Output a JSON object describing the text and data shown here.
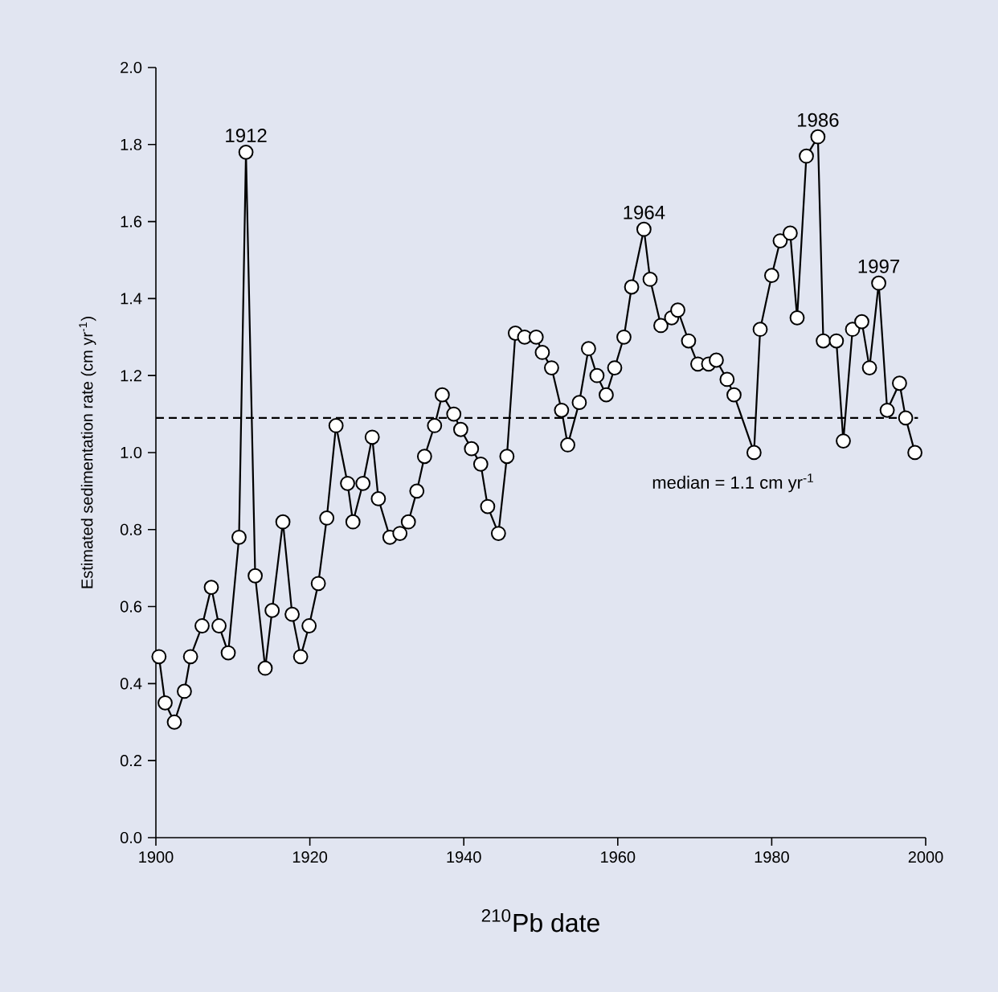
{
  "chart_data": {
    "type": "line",
    "xlabel": "$^{210}$Pb date",
    "ylabel": "Estimated sedimentation rate (cm yr$^{-1}$)",
    "xlim": [
      1900,
      2000
    ],
    "ylim": [
      0,
      2.0
    ],
    "xticks": [
      1900,
      1920,
      1940,
      1960,
      1980,
      2000
    ],
    "yticks": [
      {
        "value": 0,
        "label": "0.0"
      },
      0.2,
      0.4,
      0.6,
      0.8,
      {
        "value": 1,
        "label": "1.0"
      },
      1.2,
      1.4,
      1.6,
      1.8,
      {
        "value": 2,
        "label": "2.0"
      }
    ],
    "grid": false,
    "marker": "circle",
    "line_style": "solid",
    "series": [
      {
        "color": "#000000",
        "x": [
          1900.4,
          1901.2,
          1902.4,
          1903.7,
          1904.5,
          1906.0,
          1907.2,
          1908.2,
          1909.4,
          1910.8,
          1911.7,
          1912.9,
          1914.2,
          1915.1,
          1916.5,
          1917.7,
          1918.8,
          1919.9,
          1921.1,
          1922.2,
          1923.4,
          1924.9,
          1925.6,
          1926.9,
          1928.1,
          1928.9,
          1930.4,
          1931.7,
          1932.8,
          1933.9,
          1934.9,
          1936.2,
          1937.2,
          1938.7,
          1939.6,
          1941.0,
          1942.2,
          1943.1,
          1944.5,
          1945.6,
          1946.7,
          1947.9,
          1949.4,
          1950.2,
          1951.4,
          1952.7,
          1953.5,
          1955.0,
          1956.2,
          1957.3,
          1958.5,
          1959.6,
          1960.8,
          1961.8,
          1963.4,
          1964.2,
          1965.6,
          1967.0,
          1967.8,
          1969.2,
          1970.4,
          1971.8,
          1972.8,
          1974.2,
          1975.1,
          1977.7,
          1978.5,
          1980.0,
          1981.1,
          1982.4,
          1983.3,
          1984.5,
          1986.0,
          1986.7,
          1988.4,
          1989.3,
          1990.5,
          1991.7,
          1992.7,
          1993.9,
          1995.0,
          1996.6,
          1997.4,
          1998.6
        ],
        "values": [
          0.47,
          0.35,
          0.3,
          0.38,
          0.47,
          0.55,
          0.65,
          0.55,
          0.48,
          0.78,
          1.78,
          0.68,
          0.44,
          0.59,
          0.82,
          0.58,
          0.47,
          0.55,
          0.66,
          0.83,
          1.07,
          0.92,
          0.82,
          0.92,
          1.04,
          0.88,
          0.78,
          0.79,
          0.82,
          0.9,
          0.99,
          1.07,
          1.15,
          1.1,
          1.06,
          1.01,
          0.97,
          0.86,
          0.79,
          0.99,
          1.31,
          1.3,
          1.3,
          1.26,
          1.22,
          1.11,
          1.02,
          1.13,
          1.27,
          1.2,
          1.15,
          1.22,
          1.3,
          1.43,
          1.58,
          1.45,
          1.33,
          1.35,
          1.37,
          1.29,
          1.23,
          1.23,
          1.24,
          1.19,
          1.15,
          1.0,
          1.32,
          1.46,
          1.55,
          1.57,
          1.35,
          1.77,
          1.82,
          1.29,
          1.29,
          1.03,
          1.32,
          1.34,
          1.22,
          1.44,
          1.11,
          1.18,
          1.09,
          1.0
        ]
      }
    ],
    "ref_lines": [
      {
        "axis": "y",
        "value": 1.09,
        "label": "median = 1.1 cm yr$^{-1}$",
        "color": "#000000",
        "line_style": "dashed"
      }
    ],
    "annotations": [
      {
        "text": "1912",
        "x": 1911.7,
        "y": 1.78
      },
      {
        "text": "1964",
        "x": 1963.4,
        "y": 1.58
      },
      {
        "text": "1986",
        "x": 1986.0,
        "y": 1.82
      },
      {
        "text": "1997",
        "x": 1993.9,
        "y": 1.44
      }
    ]
  }
}
